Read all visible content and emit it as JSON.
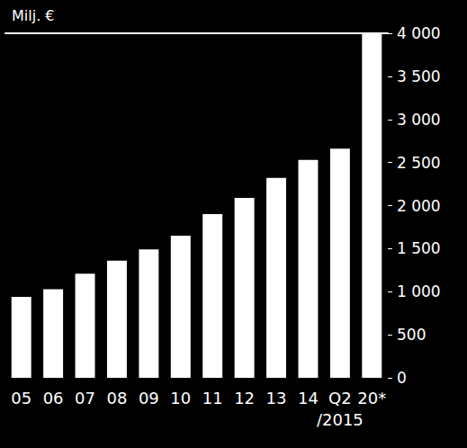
{
  "chart_data": {
    "type": "bar",
    "title": "Milj. €",
    "categories": [
      "05",
      "06",
      "07",
      "08",
      "09",
      "10",
      "11",
      "12",
      "13",
      "14",
      "Q2\n/2015",
      "20*"
    ],
    "values": [
      940,
      1030,
      1210,
      1360,
      1490,
      1650,
      1900,
      2090,
      2320,
      2530,
      2660,
      4000
    ],
    "color": "#ffffff",
    "ylim": [
      0,
      4000
    ],
    "yticks": [
      0,
      500,
      {
        "value": 1000,
        "label": "1 000"
      },
      {
        "value": 1500,
        "label": "1 500"
      },
      {
        "value": 2000,
        "label": "2 000"
      },
      {
        "value": 2500,
        "label": "2 500"
      },
      {
        "value": 3000,
        "label": "3 000"
      },
      {
        "value": 3500,
        "label": "3 500"
      },
      {
        "value": 4000,
        "label": "4 000"
      }
    ],
    "grid": false
  }
}
